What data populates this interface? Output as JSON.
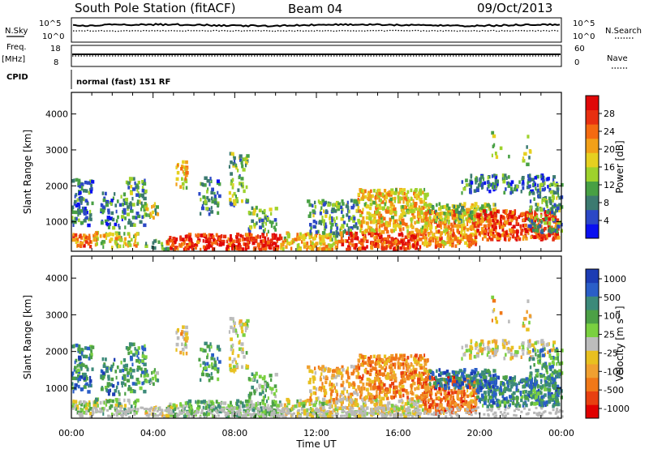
{
  "header": {
    "station": "South Pole Station (fitACF)",
    "beam": "Beam 04",
    "date": "09/Oct/2013"
  },
  "top_panels": {
    "nsky_label": "N.Sky",
    "nsky_ticks": [
      "10^5",
      "10^0"
    ],
    "nsearch_label": "N.Search",
    "nsearch_ticks": [
      "10^5",
      "10^0"
    ],
    "freq_label": "Freq.",
    "freq_unit": "[MHz]",
    "freq_ticks": [
      "18",
      "8"
    ],
    "nave_label": "Nave",
    "nave_ticks": [
      "60",
      "0"
    ],
    "cpid_label": "CPID",
    "cpid_text": "normal (fast) 151 RF"
  },
  "chart_data": [
    {
      "type": "heatmap",
      "name": "power-panel",
      "ylabel": "Slant Range [km]",
      "xlabel": "",
      "yticks": [
        "4000",
        "3000",
        "2000",
        "1000"
      ],
      "ytick_values": [
        4000,
        3000,
        2000,
        1000
      ],
      "ylim": [
        180,
        4600
      ],
      "xlim_hours": [
        0,
        24
      ],
      "colorbar": {
        "label": "Power [dB]",
        "ticks": [
          "28",
          "24",
          "20",
          "16",
          "12",
          "8",
          "4"
        ],
        "tick_values": [
          28,
          24,
          20,
          16,
          12,
          8,
          4
        ],
        "range": [
          0,
          32
        ],
        "colors": [
          "#0a10f0",
          "#2c48c6",
          "#3c7a70",
          "#48a044",
          "#9ed22c",
          "#e6d020",
          "#f2a018",
          "#f46a10",
          "#e83010",
          "#e00808"
        ]
      }
    },
    {
      "type": "heatmap",
      "name": "velocity-panel",
      "ylabel": "Slant Range [km]",
      "xlabel": "Time UT",
      "yticks": [
        "4000",
        "3000",
        "2000",
        "1000"
      ],
      "ytick_values": [
        4000,
        3000,
        2000,
        1000
      ],
      "ylim": [
        180,
        4600
      ],
      "xlim_hours": [
        0,
        24
      ],
      "xticks": [
        "00:00",
        "04:00",
        "08:00",
        "12:00",
        "16:00",
        "20:00",
        "00:00"
      ],
      "xtick_values": [
        0,
        4,
        8,
        12,
        16,
        20,
        24
      ],
      "colorbar": {
        "label": "Velocity [m s⁻¹]",
        "ticks": [
          "1000",
          "500",
          "100",
          "25",
          "-25",
          "-100",
          "-500",
          "-1000"
        ],
        "colors": [
          "#1c3cb4",
          "#2a5ec8",
          "#3c8a7a",
          "#4ca046",
          "#7ad040",
          "#bcbcbc",
          "#e8c020",
          "#f0a030",
          "#f07818",
          "#e84010",
          "#e00000"
        ]
      }
    }
  ]
}
